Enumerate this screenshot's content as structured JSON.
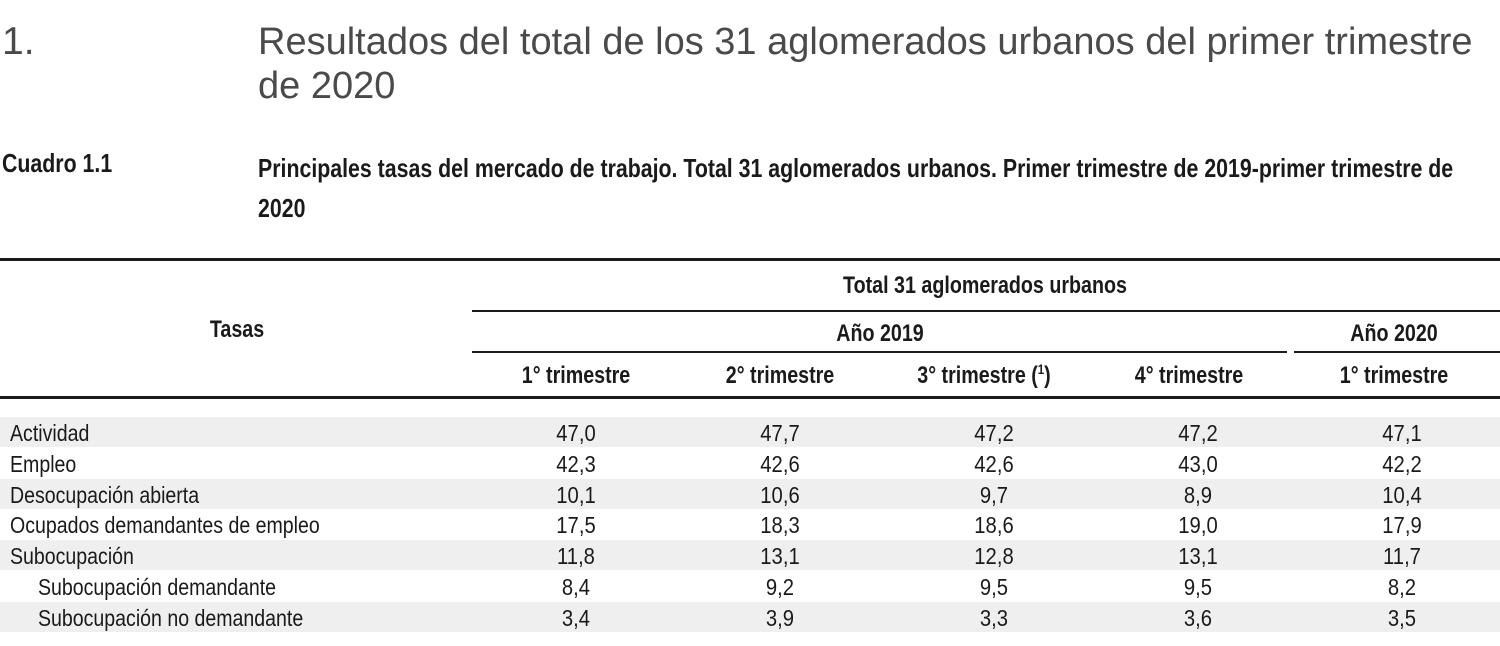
{
  "section": {
    "number": "1.",
    "title": "Resultados del total de los 31 aglomerados urbanos del primer trimestre de 2020"
  },
  "caption": {
    "label": "Cuadro 1.1",
    "text": "Principales tasas del mercado de trabajo. Total 31 aglomerados urbanos. Primer trimestre de 2019-primer trimestre de 2020"
  },
  "table": {
    "row_header": "Tasas",
    "group_header": "Total 31 aglomerados urbanos",
    "year_2019": "Año 2019",
    "year_2020": "Año 2020",
    "columns": [
      {
        "label": "1° trimestre"
      },
      {
        "label": "2° trimestre"
      },
      {
        "label": "3° trimestre (",
        "note": "1",
        "after": ")"
      },
      {
        "label": "4° trimestre"
      },
      {
        "label": "1° trimestre"
      }
    ],
    "rows": [
      {
        "label": "Actividad",
        "level": 0,
        "values": [
          "47,0",
          "47,7",
          "47,2",
          "47,2",
          "47,1"
        ]
      },
      {
        "label": "Empleo",
        "level": 0,
        "values": [
          "42,3",
          "42,6",
          "42,6",
          "43,0",
          "42,2"
        ]
      },
      {
        "label": "Desocupación abierta",
        "level": 0,
        "values": [
          "10,1",
          "10,6",
          "9,7",
          "8,9",
          "10,4"
        ]
      },
      {
        "label": "Ocupados demandantes de empleo",
        "level": 0,
        "values": [
          "17,5",
          "18,3",
          "18,6",
          "19,0",
          "17,9"
        ]
      },
      {
        "label": "Subocupación",
        "level": 0,
        "values": [
          "11,8",
          "13,1",
          "12,8",
          "13,1",
          "11,7"
        ]
      },
      {
        "label": "Subocupación demandante",
        "level": 1,
        "values": [
          "8,4",
          "9,2",
          "9,5",
          "9,5",
          "8,2"
        ]
      },
      {
        "label": "Subocupación no demandante",
        "level": 1,
        "values": [
          "3,4",
          "3,9",
          "3,3",
          "3,6",
          "3,5"
        ]
      }
    ]
  }
}
